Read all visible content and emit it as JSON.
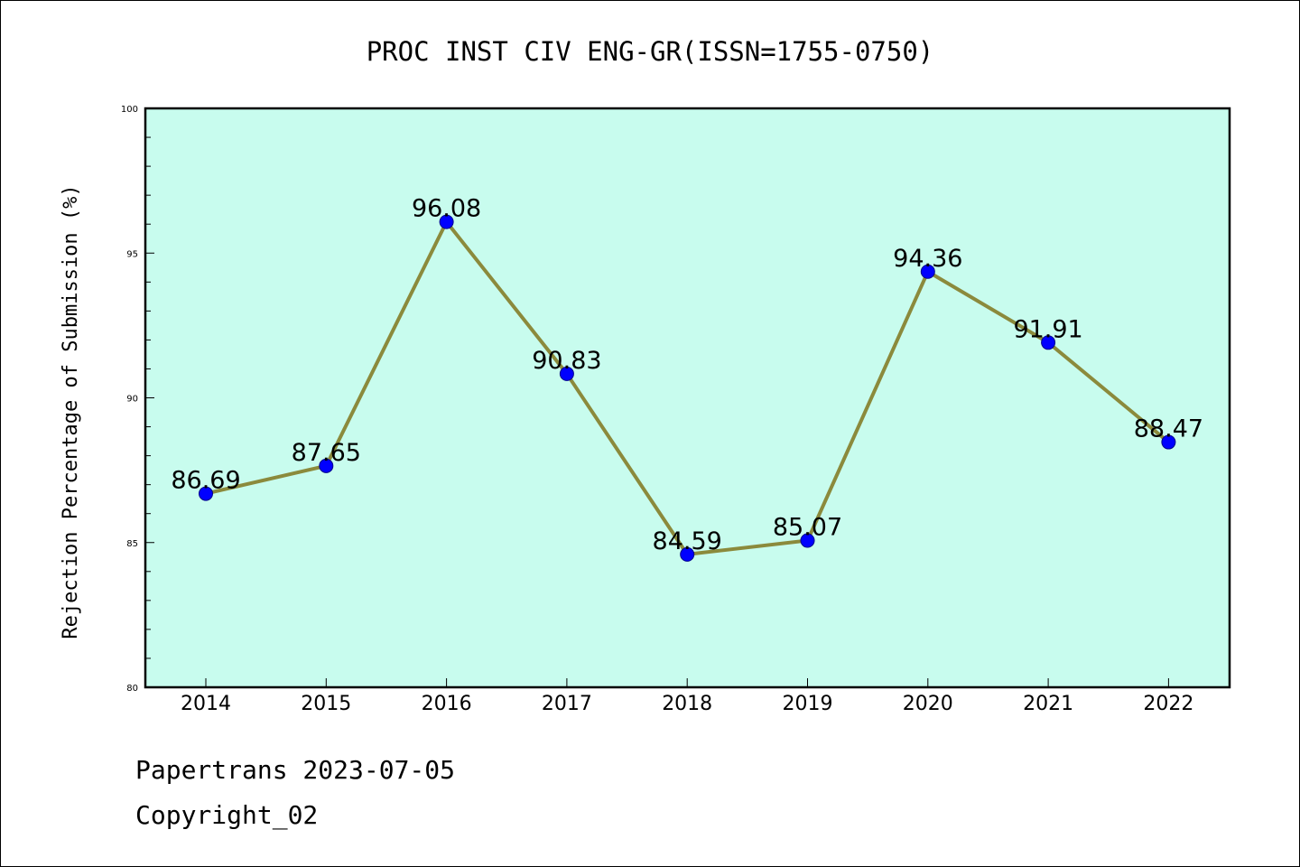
{
  "chart_data": {
    "type": "line",
    "title": "PROC INST CIV ENG-GR(ISSN=1755-0750)",
    "xlabel": "",
    "ylabel": "Rejection Percentage of Submission (%)",
    "categories": [
      "2014",
      "2015",
      "2016",
      "2017",
      "2018",
      "2019",
      "2020",
      "2021",
      "2022"
    ],
    "series": [
      {
        "values": [
          86.69,
          87.65,
          96.08,
          90.83,
          84.59,
          85.07,
          94.36,
          91.91,
          88.47
        ],
        "labels": [
          "86.69",
          "87.65",
          "96.08",
          "90.83",
          "84.59",
          "85.07",
          "94.36",
          "91.91",
          "88.47"
        ]
      }
    ],
    "ylim": [
      80,
      100
    ],
    "yticks": [
      "80",
      "85",
      "90",
      "95",
      "100"
    ],
    "ytick_values": [
      80,
      85,
      90,
      95,
      100
    ],
    "grid": false,
    "legend": "none",
    "colors": {
      "plot_background": "#c8fcee",
      "line": "#8b8a3c",
      "marker": "#0000ff",
      "axes": "#000000"
    }
  },
  "footer": {
    "source": "Papertrans 2023-07-05",
    "copyright": "Copyright_02"
  }
}
